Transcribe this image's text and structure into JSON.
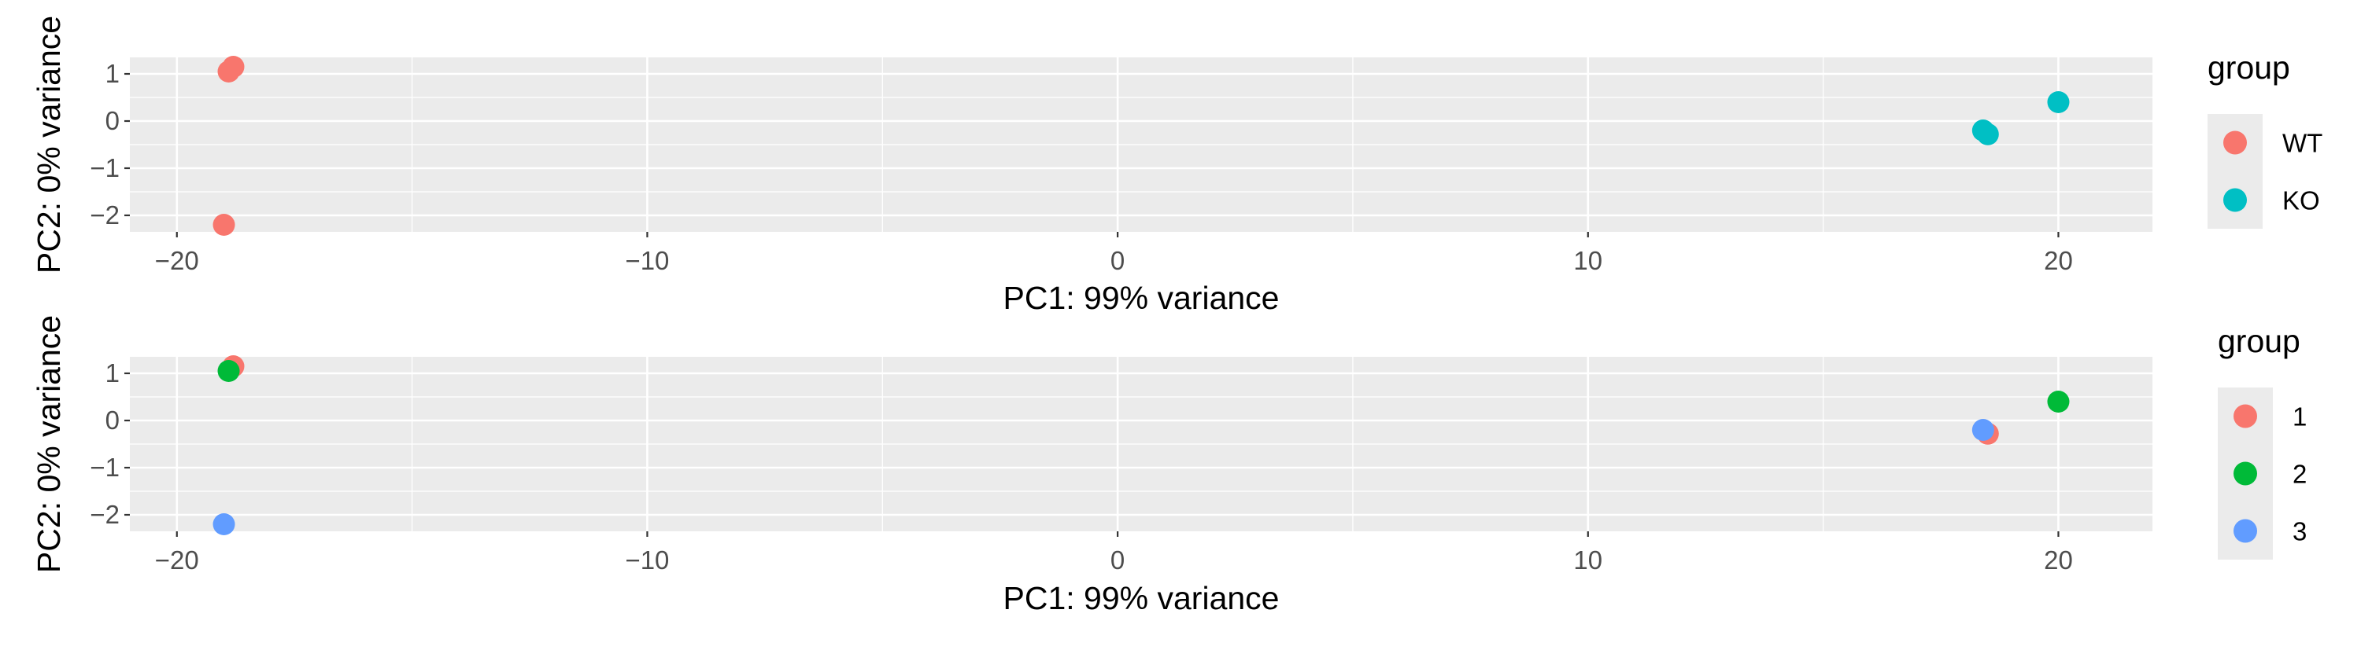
{
  "chart_data": [
    {
      "type": "scatter",
      "title": "",
      "xlabel": "PC1: 99% variance",
      "ylabel": "PC2: 0% variance",
      "xlim": [
        -21,
        22
      ],
      "ylim": [
        -2.35,
        1.35
      ],
      "x_ticks": [
        -20,
        -10,
        0,
        10,
        20
      ],
      "x_tick_labels": [
        "−20",
        "−10",
        "0",
        "10",
        "20"
      ],
      "y_ticks": [
        -2,
        -1,
        0,
        1
      ],
      "y_tick_labels": [
        "−2",
        "−1",
        "0",
        "1"
      ],
      "grid": true,
      "legend": {
        "title": "group",
        "position": "right",
        "entries": [
          {
            "label": "WT",
            "color": "#F8766D"
          },
          {
            "label": "KO",
            "color": "#00BFC4"
          }
        ]
      },
      "series": [
        {
          "name": "WT",
          "color": "#F8766D",
          "points": [
            [
              -18.8,
              1.15
            ],
            [
              -18.9,
              1.05
            ],
            [
              -19.0,
              -2.2
            ]
          ]
        },
        {
          "name": "KO",
          "color": "#00BFC4",
          "points": [
            [
              20.0,
              0.4
            ],
            [
              18.4,
              -0.2
            ],
            [
              18.5,
              -0.28
            ]
          ]
        }
      ]
    },
    {
      "type": "scatter",
      "title": "",
      "xlabel": "PC1: 99% variance",
      "ylabel": "PC2: 0% variance",
      "xlim": [
        -21,
        22
      ],
      "ylim": [
        -2.35,
        1.35
      ],
      "x_ticks": [
        -20,
        -10,
        0,
        10,
        20
      ],
      "x_tick_labels": [
        "−20",
        "−10",
        "0",
        "10",
        "20"
      ],
      "y_ticks": [
        -2,
        -1,
        0,
        1
      ],
      "y_tick_labels": [
        "−2",
        "−1",
        "0",
        "1"
      ],
      "grid": true,
      "legend": {
        "title": "group",
        "position": "right",
        "entries": [
          {
            "label": "1",
            "color": "#F8766D"
          },
          {
            "label": "2",
            "color": "#00BA38"
          },
          {
            "label": "3",
            "color": "#619CFF"
          }
        ]
      },
      "series": [
        {
          "name": "1",
          "color": "#F8766D",
          "points": [
            [
              -18.8,
              1.15
            ],
            [
              18.5,
              -0.28
            ]
          ]
        },
        {
          "name": "2",
          "color": "#00BA38",
          "points": [
            [
              -18.9,
              1.05
            ],
            [
              20.0,
              0.4
            ]
          ]
        },
        {
          "name": "3",
          "color": "#619CFF",
          "points": [
            [
              -19.0,
              -2.2
            ],
            [
              18.4,
              -0.2
            ]
          ]
        }
      ]
    }
  ]
}
